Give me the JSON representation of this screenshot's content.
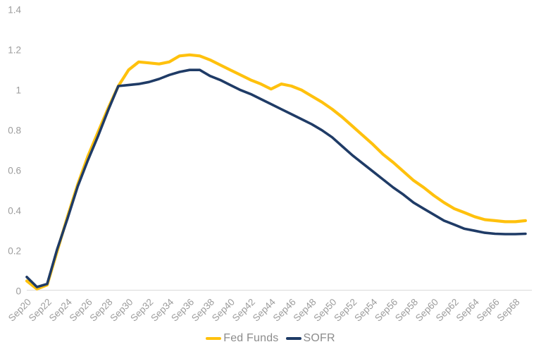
{
  "chart_data": {
    "type": "line",
    "title": "",
    "xlabel": "",
    "ylabel": "",
    "ylim": [
      0,
      1.4
    ],
    "grid": false,
    "legend_position": "bottom",
    "axis_text_color": "#9c9c9c",
    "axis_line_color": "#dadada",
    "y_tick_labels": [
      "0",
      "0.2",
      "0.4",
      "0.6",
      "0.8",
      "1",
      "1.2",
      "1.4"
    ],
    "y_tick_values": [
      0,
      0.2,
      0.4,
      0.6,
      0.8,
      1.0,
      1.2,
      1.4
    ],
    "x_tick_labels": [
      "Sep20",
      "Sep22",
      "Sep24",
      "Sep26",
      "Sep28",
      "Sep30",
      "Sep32",
      "Sep34",
      "Sep36",
      "Sep38",
      "Sep40",
      "Sep42",
      "Sep44",
      "Sep46",
      "Sep48",
      "Sep50",
      "Sep52",
      "Sep54",
      "Sep56",
      "Sep58",
      "Sep60",
      "Sep62",
      "Sep64",
      "Sep66",
      "Sep68"
    ],
    "x_categories": [
      "Sep20",
      "Sep21",
      "Sep22",
      "Sep23",
      "Sep24",
      "Sep25",
      "Sep26",
      "Sep27",
      "Sep28",
      "Sep29",
      "Sep30",
      "Sep31",
      "Sep32",
      "Sep33",
      "Sep34",
      "Sep35",
      "Sep36",
      "Sep37",
      "Sep38",
      "Sep39",
      "Sep40",
      "Sep41",
      "Sep42",
      "Sep43",
      "Sep44",
      "Sep45",
      "Sep46",
      "Sep47",
      "Sep48",
      "Sep49",
      "Sep50",
      "Sep51",
      "Sep52",
      "Sep53",
      "Sep54",
      "Sep55",
      "Sep56",
      "Sep57",
      "Sep58",
      "Sep59",
      "Sep60",
      "Sep61",
      "Sep62",
      "Sep63",
      "Sep64",
      "Sep65",
      "Sep66",
      "Sep67",
      "Sep68",
      "Sep69"
    ],
    "series": [
      {
        "name": "Fed Funds",
        "color": "#FFC10D",
        "stroke_width": 4.2,
        "values": [
          0.05,
          0.01,
          0.03,
          0.2,
          0.37,
          0.53,
          0.67,
          0.79,
          0.91,
          1.02,
          1.1,
          1.14,
          1.135,
          1.13,
          1.14,
          1.17,
          1.175,
          1.17,
          1.15,
          1.125,
          1.1,
          1.075,
          1.05,
          1.03,
          1.005,
          1.03,
          1.02,
          1.0,
          0.97,
          0.94,
          0.905,
          0.865,
          0.82,
          0.775,
          0.73,
          0.68,
          0.64,
          0.595,
          0.55,
          0.515,
          0.475,
          0.44,
          0.41,
          0.39,
          0.37,
          0.355,
          0.35,
          0.345,
          0.345,
          0.35
        ]
      },
      {
        "name": "SOFR",
        "color": "#1F3B66",
        "stroke_width": 3.6,
        "values": [
          0.07,
          0.02,
          0.035,
          0.21,
          0.36,
          0.52,
          0.65,
          0.77,
          0.9,
          1.02,
          1.025,
          1.03,
          1.04,
          1.055,
          1.075,
          1.09,
          1.1,
          1.1,
          1.07,
          1.05,
          1.025,
          1.0,
          0.98,
          0.955,
          0.93,
          0.905,
          0.88,
          0.855,
          0.83,
          0.8,
          0.765,
          0.72,
          0.675,
          0.635,
          0.595,
          0.555,
          0.515,
          0.48,
          0.44,
          0.41,
          0.38,
          0.35,
          0.33,
          0.31,
          0.3,
          0.29,
          0.285,
          0.283,
          0.283,
          0.285
        ]
      }
    ]
  }
}
